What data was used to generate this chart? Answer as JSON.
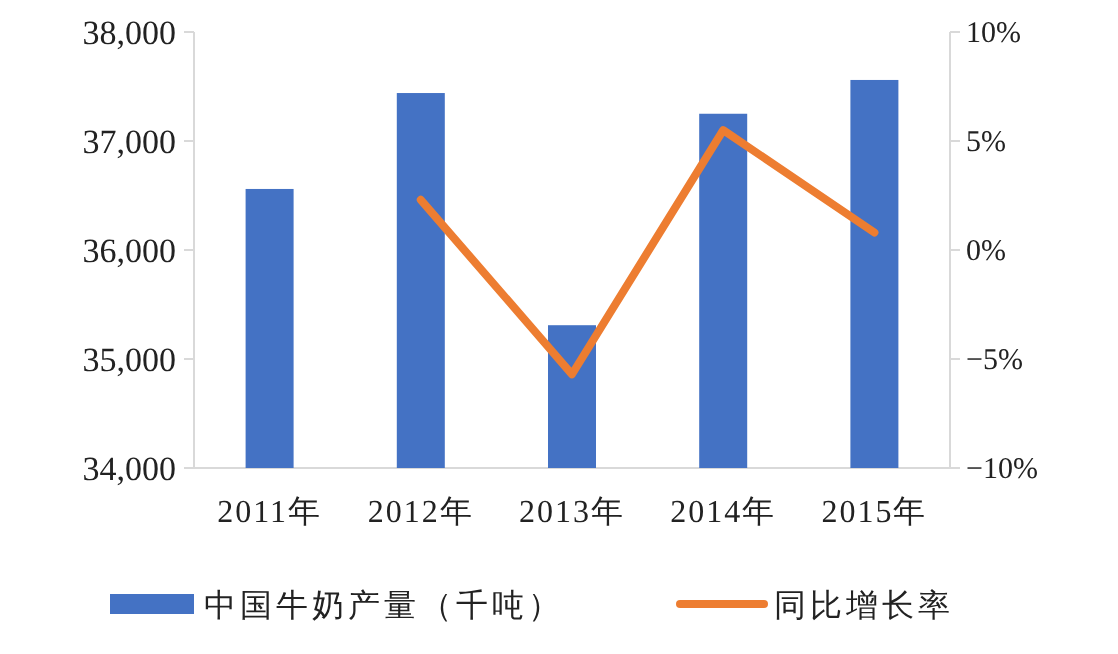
{
  "chart_data": {
    "type": "bar",
    "categories": [
      "2011年",
      "2012年",
      "2013年",
      "2014年",
      "2015年"
    ],
    "series": [
      {
        "name": "中国牛奶产量（千吨）",
        "color": "#4472c4",
        "values": [
          36560,
          37440,
          35310,
          37250,
          37560
        ]
      },
      {
        "name": "同比增长率",
        "type": "line",
        "axis": "y2",
        "color": "#ed7d31",
        "values": [
          null,
          2.3,
          -5.7,
          5.5,
          0.8
        ]
      }
    ],
    "ylim": [
      34000,
      38000
    ],
    "yticks": [
      {
        "value": 34000,
        "label": "34,000"
      },
      {
        "value": 35000,
        "label": "35,000"
      },
      {
        "value": 36000,
        "label": "36,000"
      },
      {
        "value": 37000,
        "label": "37,000"
      },
      {
        "value": 38000,
        "label": "38,000"
      }
    ],
    "y2lim": [
      -10,
      10
    ],
    "y2ticks": [
      {
        "value": -10,
        "label": "−10%"
      },
      {
        "value": -5,
        "label": "−5%"
      },
      {
        "value": 0,
        "label": "0%"
      },
      {
        "value": 5,
        "label": "5%"
      },
      {
        "value": 10,
        "label": "10%"
      }
    ],
    "legend": "bottom",
    "grid": false,
    "marker": "none"
  }
}
